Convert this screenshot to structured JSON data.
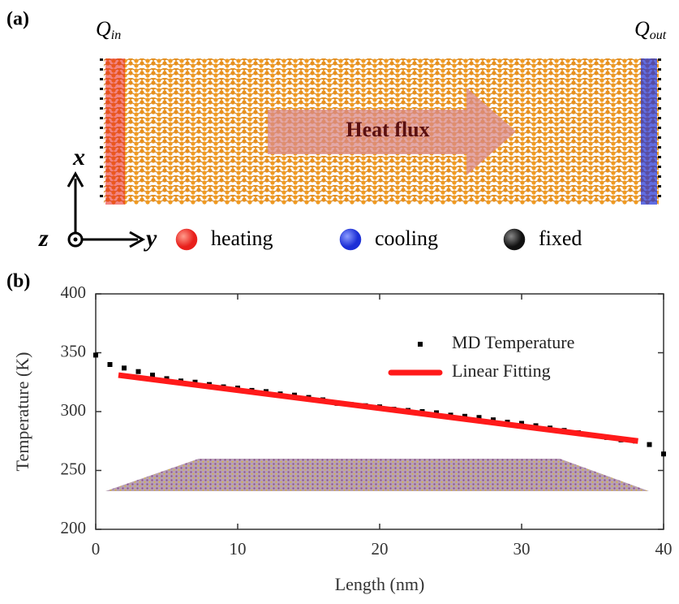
{
  "panel_a": {
    "label": "(a)",
    "q_in": "Q",
    "q_in_sub": "in",
    "q_out": "Q",
    "q_out_sub": "out",
    "arrow_text": "Heat flux",
    "axis_x": "x",
    "axis_y": "y",
    "axis_z": "z",
    "legend": [
      {
        "name": "heating",
        "color": "#e8201c"
      },
      {
        "name": "cooling",
        "color": "#1c2fd6"
      },
      {
        "name": "fixed",
        "color": "#111111"
      }
    ]
  },
  "chart_data": {
    "type": "line",
    "label": "(b)",
    "x_label": "Length (nm)",
    "y_label": "Temperature (K)",
    "xlim": [
      0,
      40
    ],
    "ylim": [
      200,
      400
    ],
    "xticks": [
      0,
      10,
      20,
      30,
      40
    ],
    "yticks": [
      200,
      250,
      300,
      350,
      400
    ],
    "legend": "upper right",
    "series": [
      {
        "name": "MD Temperature",
        "color": "#000000",
        "style": "markers",
        "x": [
          0,
          1,
          2,
          3,
          4,
          5,
          6,
          7,
          8,
          9,
          10,
          11,
          12,
          13,
          14,
          15,
          16,
          17,
          18,
          19,
          20,
          21,
          22,
          23,
          24,
          25,
          26,
          27,
          28,
          29,
          30,
          31,
          32,
          33,
          34,
          35,
          36,
          37,
          38,
          39,
          40
        ],
        "values": [
          348,
          340,
          337,
          334,
          331,
          328,
          326,
          325,
          323,
          321,
          320,
          318,
          317,
          315,
          314,
          312,
          310,
          307,
          306,
          305,
          304,
          302,
          301,
          300,
          299,
          297,
          296,
          295,
          293,
          291,
          290,
          288,
          286,
          284,
          282,
          280,
          278,
          276,
          275,
          272,
          264
        ]
      },
      {
        "name": "Linear Fitting",
        "color": "#ff1a1a",
        "style": "line",
        "x": [
          1.6,
          38.2
        ],
        "values": [
          331,
          275
        ]
      }
    ]
  }
}
